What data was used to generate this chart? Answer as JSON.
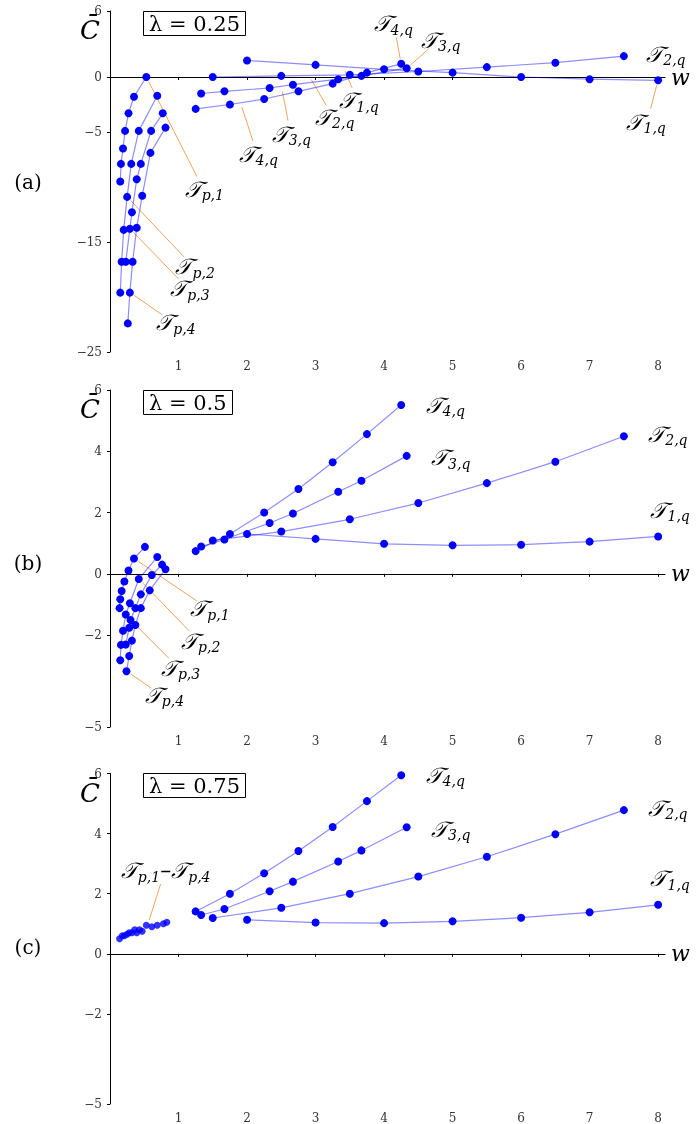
{
  "chart_data": [
    {
      "type": "line",
      "title": "λ = 0.25",
      "xlabel": "w",
      "ylabel": "C̄",
      "xlim": [
        0,
        8.1
      ],
      "xticks": [
        1,
        2,
        3,
        4,
        5,
        6,
        7,
        8
      ],
      "ylim": [
        -25,
        6
      ],
      "yticks": [
        -25,
        -15,
        -5,
        0,
        6
      ],
      "marker": "circle",
      "annotations": [
        "(a)",
        {
          "text": "𝒯$_{1,q}$",
          "x": 3.4,
          "y": 0.95
        },
        {
          "text": "𝒯$_{2,q}$",
          "x": 2.9,
          "y": 0.15
        },
        {
          "text": "𝒯$_{3,q}$",
          "x": 2.5,
          "y": -0.85
        },
        {
          "text": "𝒯$_{4,q}$",
          "x": 1.9,
          "y": -2.3
        }
      ],
      "series": [
        {
          "name": "𝒯$_{1,q}$",
          "color": "#0000ff",
          "x": [
            2,
            3,
            4,
            5,
            6,
            7,
            8
          ],
          "values": [
            1.5,
            1.1,
            0.7,
            0.4,
            0,
            -0.2,
            -0.3
          ]
        },
        {
          "name": "𝒯$_{2,q}$",
          "color": "#0000ff",
          "x": [
            1.5,
            2.5,
            3.5,
            4.5,
            5.5,
            6.5,
            7.5
          ],
          "values": [
            0,
            0.1,
            0.2,
            0.5,
            0.9,
            1.3,
            1.9
          ]
        },
        {
          "name": "𝒯$_{3,q}$",
          "color": "#0000ff",
          "x": [
            1.33,
            1.67,
            2.33,
            2.67,
            3.33,
            3.67,
            4.33
          ],
          "values": [
            -1.5,
            -1.3,
            -1.0,
            -0.7,
            -0.2,
            0.1,
            0.8
          ]
        },
        {
          "name": "𝒯$_{4,q}$",
          "color": "#0000ff",
          "x": [
            1.25,
            1.75,
            2.25,
            2.75,
            3.25,
            3.75,
            4.25
          ],
          "values": [
            -2.9,
            -2.5,
            -2.0,
            -1.3,
            -0.6,
            0.4,
            1.2
          ]
        },
        {
          "name": "𝒯$_{p,1}$",
          "color": "#0000ff",
          "x": [
            0.15,
            0.16,
            0.19,
            0.22,
            0.27,
            0.35,
            0.53
          ],
          "values": [
            -9.5,
            -7.9,
            -6.5,
            -4.9,
            -3.3,
            -1.8,
            0
          ]
        },
        {
          "name": "𝒯$_{p,2}$",
          "color": "#0000ff",
          "x": [
            0.15,
            0.17,
            0.2,
            0.25,
            0.31,
            0.42,
            0.69
          ],
          "values": [
            -19.6,
            -16.8,
            -13.9,
            -10.9,
            -7.9,
            -4.9,
            -1.7
          ]
        },
        {
          "name": "𝒯$_{p,3}$",
          "color": "#0000ff",
          "x": [
            0.23,
            0.29,
            0.32,
            0.39,
            0.45,
            0.6,
            0.77
          ],
          "values": [
            -16.8,
            -13.8,
            -12.3,
            -9.3,
            -7.9,
            -4.9,
            -3.3
          ]
        },
        {
          "name": "𝒯$_{p,4}$",
          "color": "#0000ff",
          "x": [
            0.26,
            0.29,
            0.33,
            0.39,
            0.47,
            0.59,
            0.81
          ],
          "values": [
            -22.4,
            -19.6,
            -16.8,
            -13.7,
            -10.8,
            -6.9,
            -4.6
          ]
        }
      ]
    },
    {
      "type": "line",
      "title": "λ = 0.5",
      "xlabel": "w",
      "ylabel": "C̄",
      "xlim": [
        0,
        8.1
      ],
      "xticks": [
        1,
        2,
        3,
        4,
        5,
        6,
        7,
        8
      ],
      "ylim": [
        -5,
        6
      ],
      "yticks": [
        -5,
        -2,
        0,
        2,
        4,
        6
      ],
      "marker": "circle",
      "annotations": [
        "(b)"
      ],
      "series": [
        {
          "name": "𝒯$_{1,q}$",
          "color": "#0000ff",
          "x": [
            2,
            3,
            4,
            5,
            6,
            7,
            8
          ],
          "values": [
            1.3,
            1.14,
            0.98,
            0.93,
            0.95,
            1.05,
            1.22
          ]
        },
        {
          "name": "𝒯$_{2,q}$",
          "color": "#0000ff",
          "x": [
            1.5,
            2.5,
            3.5,
            4.5,
            5.5,
            6.5,
            7.5
          ],
          "values": [
            1.09,
            1.38,
            1.78,
            2.31,
            2.96,
            3.66,
            4.49
          ]
        },
        {
          "name": "𝒯$_{3,q}$",
          "color": "#0000ff",
          "x": [
            1.33,
            1.67,
            2.33,
            2.67,
            3.33,
            3.67,
            4.33
          ],
          "values": [
            0.89,
            1.12,
            1.66,
            1.97,
            2.68,
            3.04,
            3.85
          ]
        },
        {
          "name": "𝒯$_{4,q}$",
          "color": "#0000ff",
          "x": [
            1.25,
            1.75,
            2.25,
            2.75,
            3.25,
            3.75,
            4.25
          ],
          "values": [
            0.74,
            1.3,
            2.0,
            2.77,
            3.64,
            4.56,
            5.51
          ]
        },
        {
          "name": "𝒯$_{p,1}$",
          "color": "#0000ff",
          "x": [
            0.14,
            0.15,
            0.17,
            0.21,
            0.27,
            0.35,
            0.51
          ],
          "values": [
            -1.12,
            -0.83,
            -0.56,
            -0.25,
            0.11,
            0.5,
            0.88
          ]
        },
        {
          "name": "𝒯$_{p,2}$",
          "color": "#0000ff",
          "x": [
            0.15,
            0.16,
            0.19,
            0.23,
            0.29,
            0.42,
            0.69
          ],
          "values": [
            -2.82,
            -2.32,
            -1.86,
            -1.33,
            -0.96,
            -0.17,
            0.55
          ]
        },
        {
          "name": "𝒯$_{p,3}$",
          "color": "#0000ff",
          "x": [
            0.23,
            0.28,
            0.3,
            0.37,
            0.45,
            0.61,
            0.76
          ],
          "values": [
            -2.31,
            -1.76,
            -1.51,
            -1.12,
            -0.67,
            -0.04,
            0.3
          ]
        },
        {
          "name": "𝒯$_{p,4}$",
          "color": "#0000ff",
          "x": [
            0.24,
            0.28,
            0.32,
            0.37,
            0.45,
            0.58,
            0.81
          ],
          "values": [
            -3.18,
            -2.68,
            -2.18,
            -1.67,
            -1.12,
            -0.54,
            0.15
          ]
        }
      ]
    },
    {
      "type": "line",
      "title": "λ = 0.75",
      "xlabel": "w",
      "ylabel": "C̄",
      "xlim": [
        0,
        8.1
      ],
      "xticks": [
        1,
        2,
        3,
        4,
        5,
        6,
        7,
        8
      ],
      "ylim": [
        -5,
        6
      ],
      "yticks": [
        -5,
        -2,
        0,
        2,
        4,
        6
      ],
      "marker": "circle",
      "annotations": [
        "(c)",
        {
          "text": "𝒯$_{p,1}$–𝒯$_{p,4}$",
          "x": 0.55,
          "y": 0.97
        }
      ],
      "series": [
        {
          "name": "𝒯$_{1,q}$",
          "color": "#0000ff",
          "x": [
            2,
            3,
            4,
            5,
            6,
            7,
            8
          ],
          "values": [
            1.13,
            1.04,
            1.02,
            1.08,
            1.2,
            1.38,
            1.63
          ]
        },
        {
          "name": "𝒯$_{2,q}$",
          "color": "#0000ff",
          "x": [
            1.5,
            2.5,
            3.5,
            4.5,
            5.5,
            6.5,
            7.5
          ],
          "values": [
            1.19,
            1.53,
            2.0,
            2.57,
            3.23,
            3.98,
            4.78
          ]
        },
        {
          "name": "𝒯$_{3,q}$",
          "color": "#0000ff",
          "x": [
            1.33,
            1.67,
            2.33,
            2.67,
            3.33,
            3.67,
            4.33
          ],
          "values": [
            1.29,
            1.49,
            2.08,
            2.4,
            3.07,
            3.44,
            4.21
          ]
        },
        {
          "name": "𝒯$_{4,q}$",
          "color": "#0000ff",
          "x": [
            1.25,
            1.75,
            2.25,
            2.75,
            3.25,
            3.75,
            4.25
          ],
          "values": [
            1.41,
            2.0,
            2.68,
            3.42,
            4.22,
            5.08,
            5.94
          ]
        },
        {
          "type": "scatter",
          "color": "#0000ff",
          "x": [
            0.14,
            0.18,
            0.21,
            0.25,
            0.28,
            0.32,
            0.36,
            0.39,
            0.43,
            0.47,
            0.53,
            0.61,
            0.69,
            0.78,
            0.83
          ],
          "values": [
            0.5,
            0.6,
            0.6,
            0.65,
            0.7,
            0.7,
            0.8,
            0.7,
            0.8,
            0.75,
            0.95,
            0.9,
            0.95,
            1.0,
            1.05
          ]
        }
      ]
    }
  ]
}
